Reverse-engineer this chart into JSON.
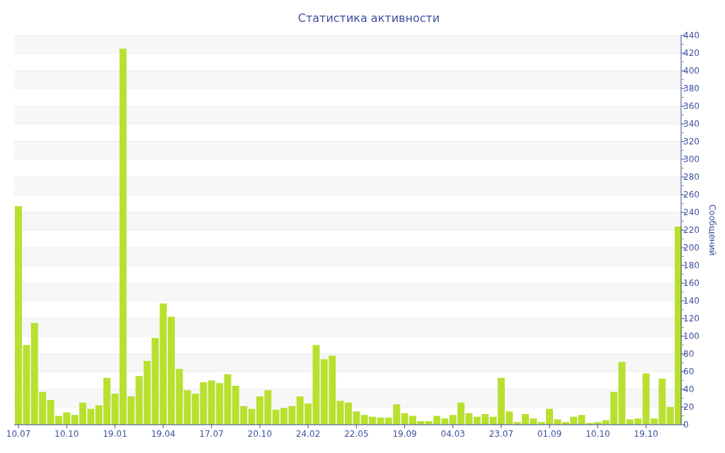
{
  "chart_data": {
    "type": "bar",
    "title": "Статистика активности",
    "ylabel": "Сообщений",
    "color": "#b9e030",
    "categories": [
      "10.07",
      null,
      null,
      null,
      null,
      null,
      "10.10",
      null,
      null,
      null,
      null,
      null,
      "19.01",
      null,
      null,
      null,
      null,
      null,
      "19.04",
      null,
      null,
      null,
      null,
      null,
      "17.07",
      null,
      null,
      null,
      null,
      null,
      "20.10",
      null,
      null,
      null,
      null,
      null,
      "24.02",
      null,
      null,
      null,
      null,
      null,
      "22.05",
      null,
      null,
      null,
      null,
      null,
      "19.09",
      null,
      null,
      null,
      null,
      null,
      "04.03",
      null,
      null,
      null,
      null,
      null,
      "23.07",
      null,
      null,
      null,
      null,
      null,
      "01.09",
      null,
      null,
      null,
      null,
      null,
      "10.10",
      null,
      null,
      null,
      null,
      null,
      "19.10",
      null,
      null,
      null,
      null
    ],
    "values": [
      247,
      90,
      115,
      37,
      28,
      10,
      14,
      11,
      25,
      18,
      22,
      53,
      35,
      425,
      32,
      55,
      72,
      98,
      137,
      122,
      63,
      39,
      35,
      48,
      50,
      47,
      57,
      44,
      21,
      18,
      32,
      39,
      17,
      19,
      21,
      32,
      24,
      90,
      74,
      78,
      27,
      25,
      15,
      11,
      9,
      8,
      8,
      23,
      13,
      10,
      4,
      4,
      10,
      7,
      11,
      25,
      13,
      9,
      12,
      9,
      53,
      15,
      3,
      12,
      7,
      3,
      18,
      6,
      3,
      9,
      11,
      2,
      3,
      5,
      37,
      71,
      6,
      7,
      58,
      7,
      52,
      20,
      224
    ],
    "ylim": [
      0,
      440
    ],
    "yticks": [
      0,
      {
        "value": 10,
        "label": null
      },
      20,
      {
        "value": 30,
        "label": null
      },
      40,
      {
        "value": 50,
        "label": null
      },
      60,
      {
        "value": 70,
        "label": null
      },
      80,
      {
        "value": 90,
        "label": null
      },
      100,
      {
        "value": 110,
        "label": null
      },
      120,
      {
        "value": 130,
        "label": null
      },
      140,
      {
        "value": 150,
        "label": null
      },
      160,
      {
        "value": 170,
        "label": null
      },
      180,
      {
        "value": 190,
        "label": null
      },
      200,
      {
        "value": 210,
        "label": null
      },
      220,
      {
        "value": 230,
        "label": null
      },
      240,
      {
        "value": 250,
        "label": null
      },
      260,
      {
        "value": 270,
        "label": null
      },
      280,
      {
        "value": 290,
        "label": null
      },
      300,
      {
        "value": 310,
        "label": null
      },
      320,
      {
        "value": 330,
        "label": null
      },
      340,
      {
        "value": 350,
        "label": null
      },
      360,
      {
        "value": 370,
        "label": null
      },
      380,
      {
        "value": 390,
        "label": null
      },
      400,
      {
        "value": 410,
        "label": null
      },
      420,
      {
        "value": 430,
        "label": null
      },
      440
    ],
    "grid": "y"
  }
}
